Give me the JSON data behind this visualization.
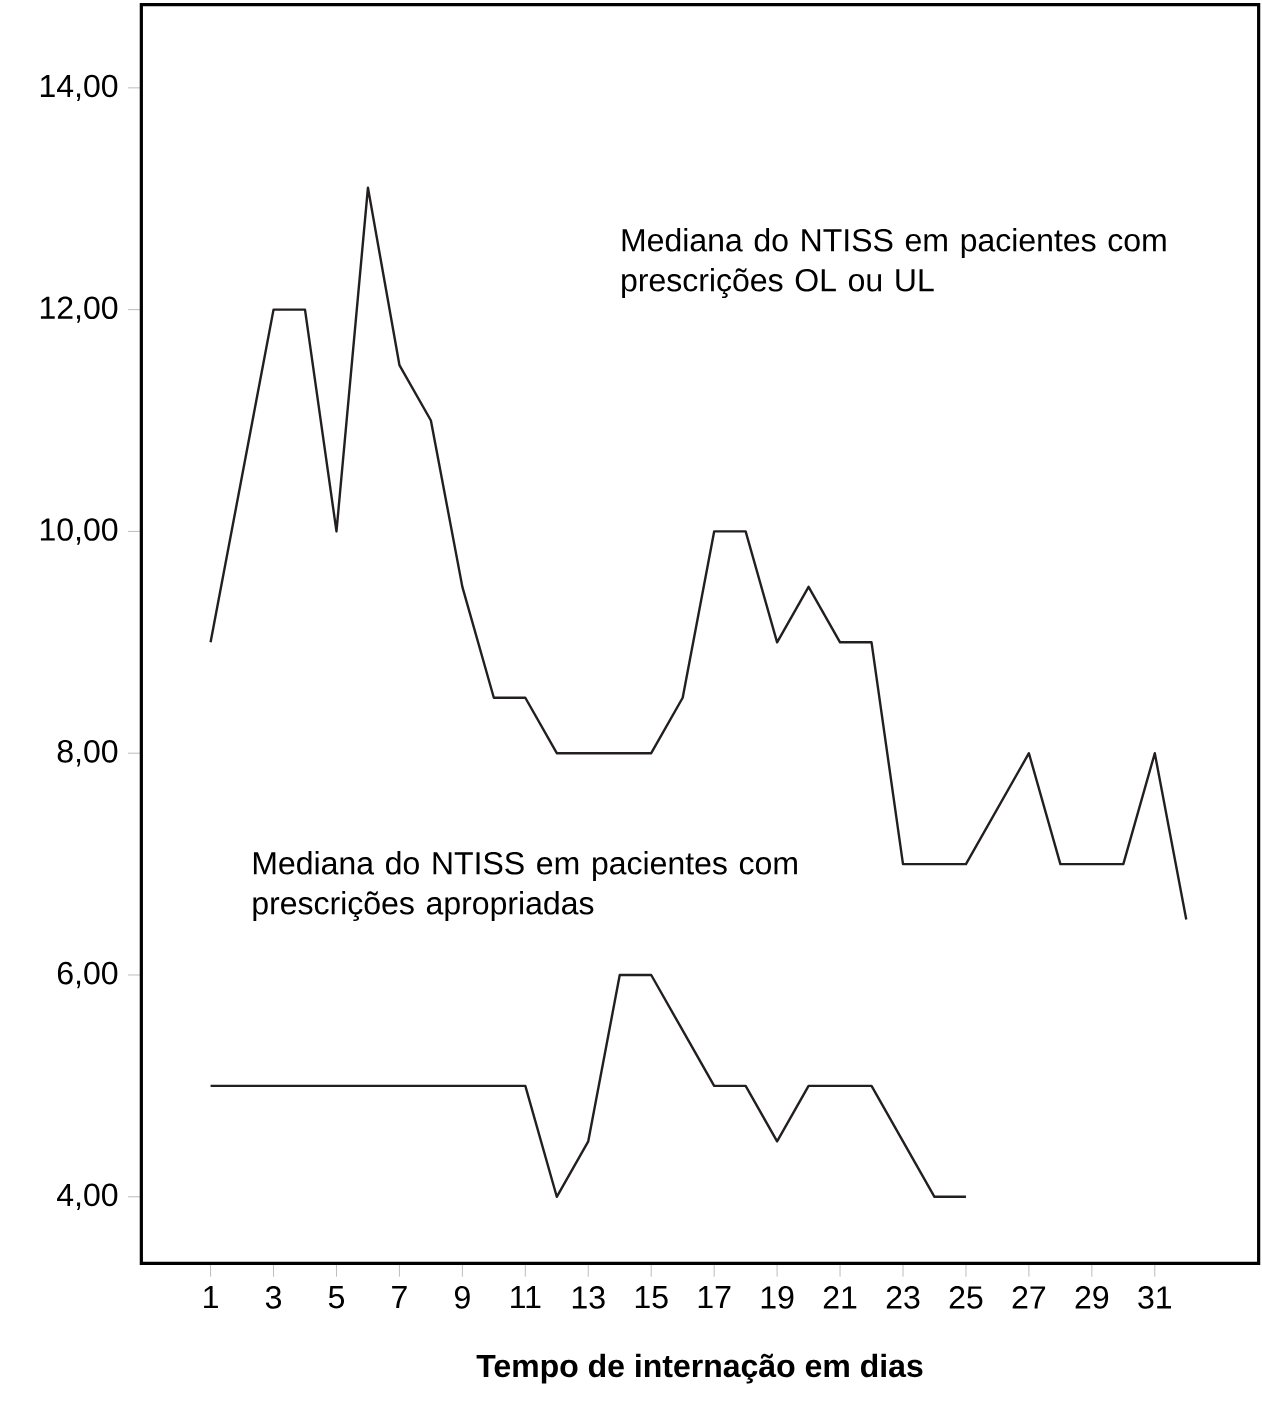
{
  "chart_data": {
    "type": "line",
    "xlabel": "Tempo de internação em dias",
    "x": [
      1,
      2,
      3,
      4,
      5,
      6,
      7,
      8,
      9,
      10,
      11,
      12,
      13,
      14,
      15,
      16,
      17,
      18,
      19,
      20,
      21,
      22,
      23,
      24,
      25,
      26,
      27,
      28,
      29,
      30,
      31,
      32
    ],
    "series": [
      {
        "color": "#231f20",
        "values": [
          9,
          10.5,
          12,
          12,
          10,
          13.1,
          11.5,
          11,
          9.5,
          8.5,
          8.5,
          8,
          8,
          8,
          8,
          8.5,
          10,
          10,
          9,
          9.5,
          9,
          9,
          7,
          7,
          7,
          7.5,
          8,
          7,
          7,
          7,
          8,
          6.5
        ]
      },
      {
        "color": "#231f20",
        "values": [
          5,
          5,
          5,
          5,
          5,
          5,
          5,
          5,
          5,
          5,
          5,
          4,
          4.5,
          6,
          6,
          5.5,
          5,
          5,
          4.5,
          5,
          5,
          5,
          4.5,
          4,
          4,
          null,
          null,
          null,
          null,
          null,
          null,
          null
        ]
      }
    ],
    "annotations": [
      "Mediana do NTISS em pacientes com prescrições OL ou UL",
      "Mediana do NTISS em pacientes com prescrições apropriadas"
    ],
    "xlim": [
      -1.2,
      34.3
    ],
    "ylim": [
      3.4,
      14.75
    ],
    "xticks": [
      1,
      3,
      5,
      7,
      9,
      11,
      13,
      15,
      17,
      19,
      21,
      23,
      25,
      27,
      29,
      31
    ],
    "yticks": [
      {
        "value": 4,
        "label": "4,00"
      },
      {
        "value": 6,
        "label": "6,00"
      },
      {
        "value": 8,
        "label": "8,00"
      },
      {
        "value": 10,
        "label": "10,00"
      },
      {
        "value": 12,
        "label": "12,00"
      },
      {
        "value": 14,
        "label": "14,00"
      }
    ],
    "marker": "none",
    "line_style": "solid",
    "grid": false,
    "legend": false
  }
}
